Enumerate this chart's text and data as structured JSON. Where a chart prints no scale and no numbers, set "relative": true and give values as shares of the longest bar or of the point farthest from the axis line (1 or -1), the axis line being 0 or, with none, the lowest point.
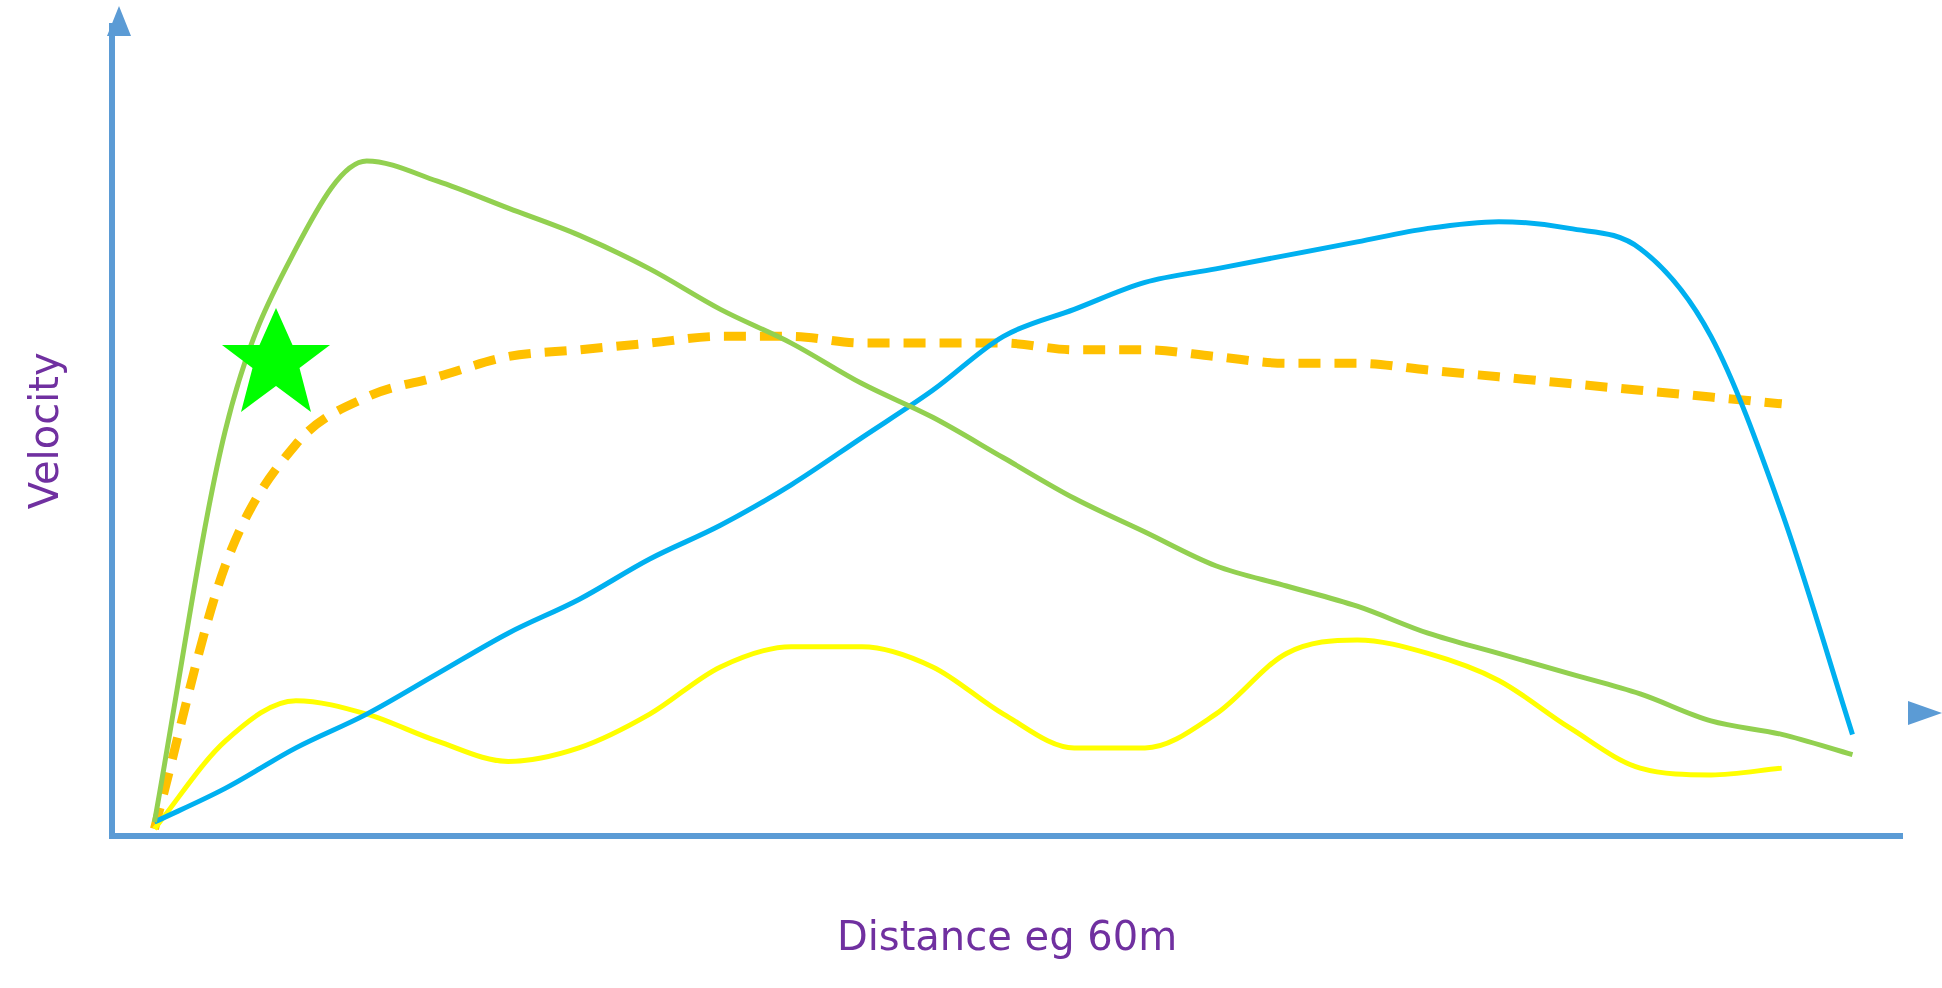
{
  "chart_data": {
    "type": "line",
    "relative": true,
    "xlabel": "Distance eg 60m",
    "ylabel": "Velocity",
    "grid": false,
    "legend": false,
    "marker": "none",
    "categories": [
      null,
      null,
      null,
      null,
      null,
      null,
      null,
      null,
      null,
      null,
      null,
      null,
      null,
      null,
      null,
      null,
      null,
      null,
      null,
      null,
      null,
      null,
      null,
      null,
      null
    ],
    "series": [
      {
        "color": "#92d050",
        "line_style": "solid",
        "values": [
          0.02,
          0.6,
          0.87,
          1.0,
          0.97,
          0.93,
          0.89,
          0.84,
          0.78,
          0.73,
          0.67,
          0.62,
          0.56,
          0.5,
          0.45,
          0.4,
          0.37,
          0.34,
          0.3,
          0.27,
          0.24,
          0.21,
          0.17,
          0.15,
          0.12
        ]
      },
      {
        "color": "#00b0f0",
        "line_style": "solid",
        "values": [
          0.02,
          0.07,
          0.13,
          0.18,
          0.24,
          0.3,
          0.35,
          0.41,
          0.46,
          0.52,
          0.59,
          0.66,
          0.74,
          0.78,
          0.82,
          0.84,
          0.86,
          0.88,
          0.9,
          0.91,
          0.9,
          0.87,
          0.74,
          0.48,
          0.15
        ]
      },
      {
        "color": "#ffff00",
        "line_style": "solid",
        "values": [
          0.01,
          0.14,
          0.2,
          0.18,
          0.14,
          0.11,
          0.13,
          0.18,
          0.25,
          0.28,
          0.28,
          0.25,
          0.18,
          0.13,
          0.13,
          0.18,
          0.27,
          0.29,
          0.27,
          0.23,
          0.16,
          0.1,
          0.09,
          0.1,
          null
        ]
      },
      {
        "color": "#ffc000",
        "line_style": "dashed",
        "values": [
          0.01,
          0.4,
          0.58,
          0.65,
          0.68,
          0.71,
          0.72,
          0.73,
          0.74,
          0.74,
          0.73,
          0.73,
          0.73,
          0.72,
          0.72,
          0.71,
          0.7,
          0.7,
          0.69,
          0.68,
          0.67,
          0.66,
          0.65,
          0.64,
          null
        ]
      }
    ]
  }
}
